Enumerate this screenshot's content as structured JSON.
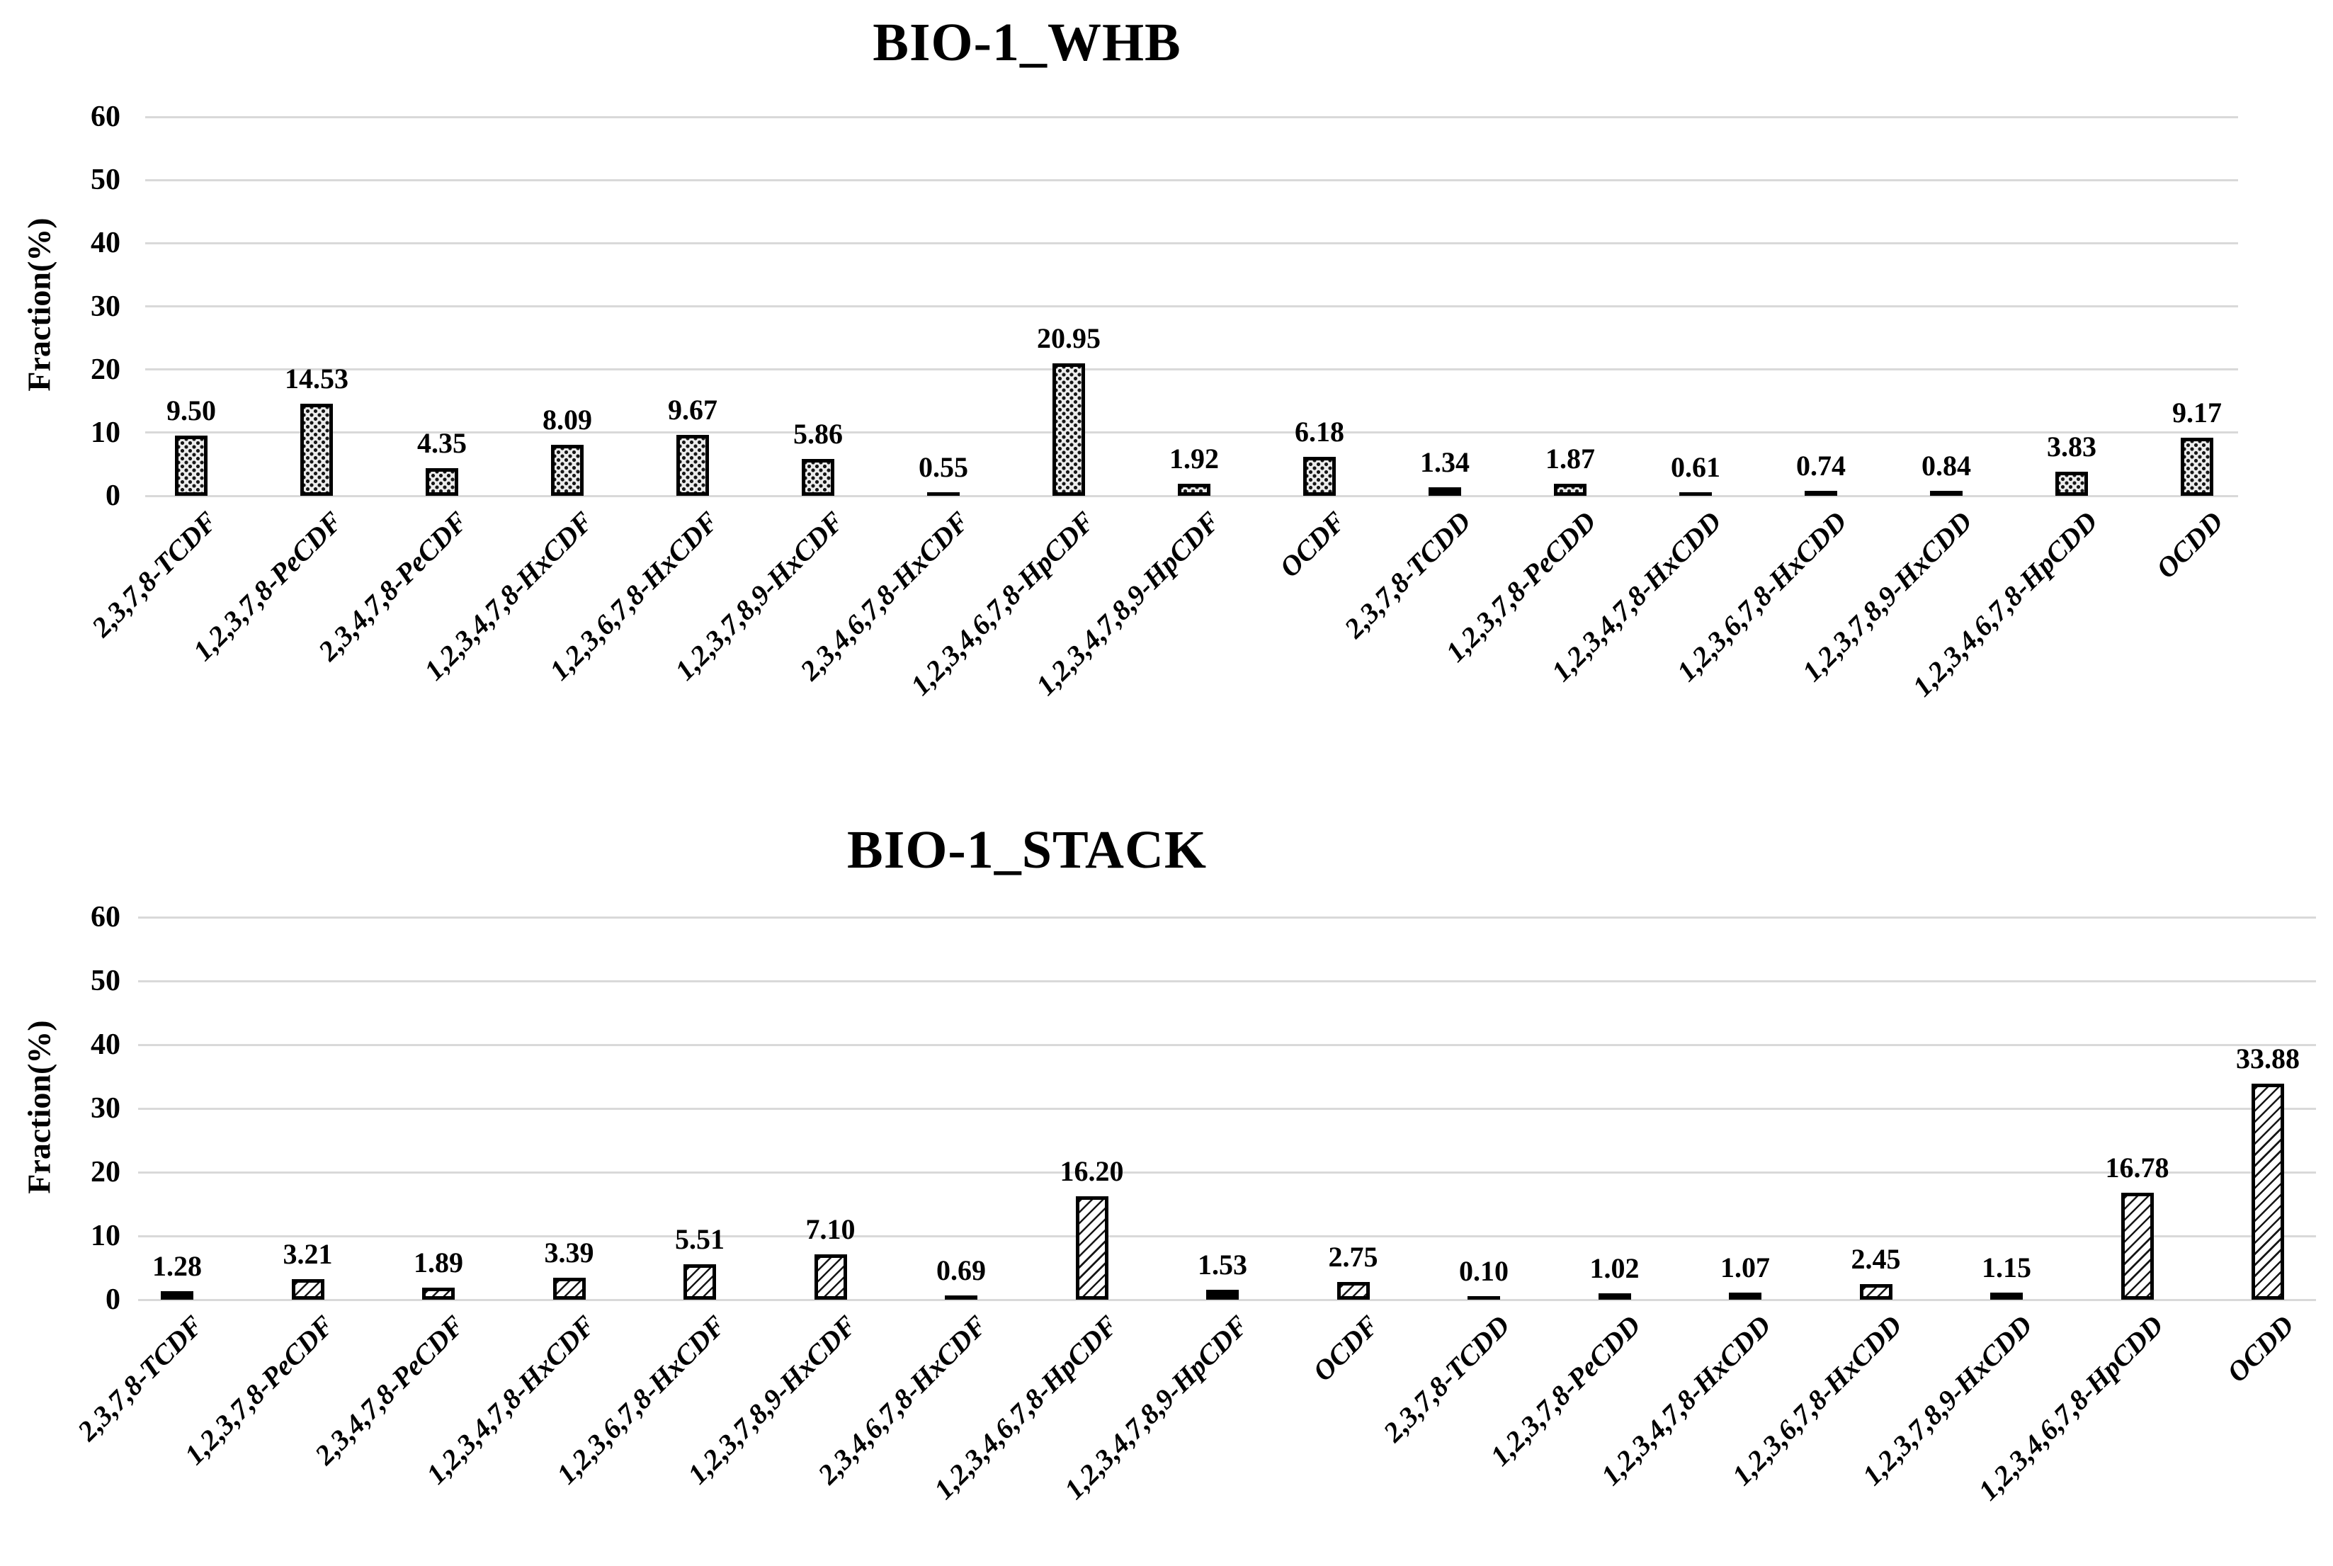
{
  "figure": {
    "background": "#ffffff",
    "text_color": "#000000",
    "gridline_color": "#d9d9d9"
  },
  "chart_data": [
    {
      "type": "bar",
      "title": "BIO-1_WHB",
      "ylabel": "Fraction(%)",
      "ylim": [
        0,
        60
      ],
      "yticks": [
        0,
        10,
        20,
        30,
        40,
        50,
        60
      ],
      "grid": "horizontal",
      "legend": "none",
      "bar_pattern": "dotted-grid",
      "categories": [
        "2,3,7,8-TCDF",
        "1,2,3,7,8-PeCDF",
        "2,3,4,7,8-PeCDF",
        "1,2,3,4,7,8-HxCDF",
        "1,2,3,6,7,8-HxCDF",
        "1,2,3,7,8,9-HxCDF",
        "2,3,4,6,7,8-HxCDF",
        "1,2,3,4,6,7,8-HpCDF",
        "1,2,3,4,7,8,9-HpCDF",
        "OCDF",
        "2,3,7,8-TCDD",
        "1,2,3,7,8-PeCDD",
        "1,2,3,4,7,8-HxCDD",
        "1,2,3,6,7,8-HxCDD",
        "1,2,3,7,8,9-HxCDD",
        "1,2,3,4,6,7,8-HpCDD",
        "OCDD"
      ],
      "values": [
        9.5,
        14.53,
        4.35,
        8.09,
        9.67,
        5.86,
        0.55,
        20.95,
        1.92,
        6.18,
        1.34,
        1.87,
        0.61,
        0.74,
        0.84,
        3.83,
        9.17
      ],
      "value_labels": [
        "9.50",
        "14.53",
        "4.35",
        "8.09",
        "9.67",
        "5.86",
        "0.55",
        "20.95",
        "1.92",
        "6.18",
        "1.34",
        "1.87",
        "0.61",
        "0.74",
        "0.84",
        "3.83",
        "9.17"
      ]
    },
    {
      "type": "bar",
      "title": "BIO-1_STACK",
      "ylabel": "Fraction(%)",
      "ylim": [
        0,
        60
      ],
      "yticks": [
        0,
        10,
        20,
        30,
        40,
        50,
        60
      ],
      "grid": "horizontal",
      "legend": "none",
      "bar_pattern": "diagonal-hatch",
      "categories": [
        "2,3,7,8-TCDF",
        "1,2,3,7,8-PeCDF",
        "2,3,4,7,8-PeCDF",
        "1,2,3,4,7,8-HxCDF",
        "1,2,3,6,7,8-HxCDF",
        "1,2,3,7,8,9-HxCDF",
        "2,3,4,6,7,8-HxCDF",
        "1,2,3,4,6,7,8-HpCDF",
        "1,2,3,4,7,8,9-HpCDF",
        "OCDF",
        "2,3,7,8-TCDD",
        "1,2,3,7,8-PeCDD",
        "1,2,3,4,7,8-HxCDD",
        "1,2,3,6,7,8-HxCDD",
        "1,2,3,7,8,9-HxCDD",
        "1,2,3,4,6,7,8-HpCDD",
        "OCDD"
      ],
      "values": [
        1.28,
        3.21,
        1.89,
        3.39,
        5.51,
        7.1,
        0.69,
        16.2,
        1.53,
        2.75,
        0.1,
        1.02,
        1.07,
        2.45,
        1.15,
        16.78,
        33.88
      ],
      "value_labels": [
        "1.28",
        "3.21",
        "1.89",
        "3.39",
        "5.51",
        "7.10",
        "0.69",
        "16.20",
        "1.53",
        "2.75",
        "0.10",
        "1.02",
        "1.07",
        "2.45",
        "1.15",
        "16.78",
        "33.88"
      ]
    }
  ]
}
